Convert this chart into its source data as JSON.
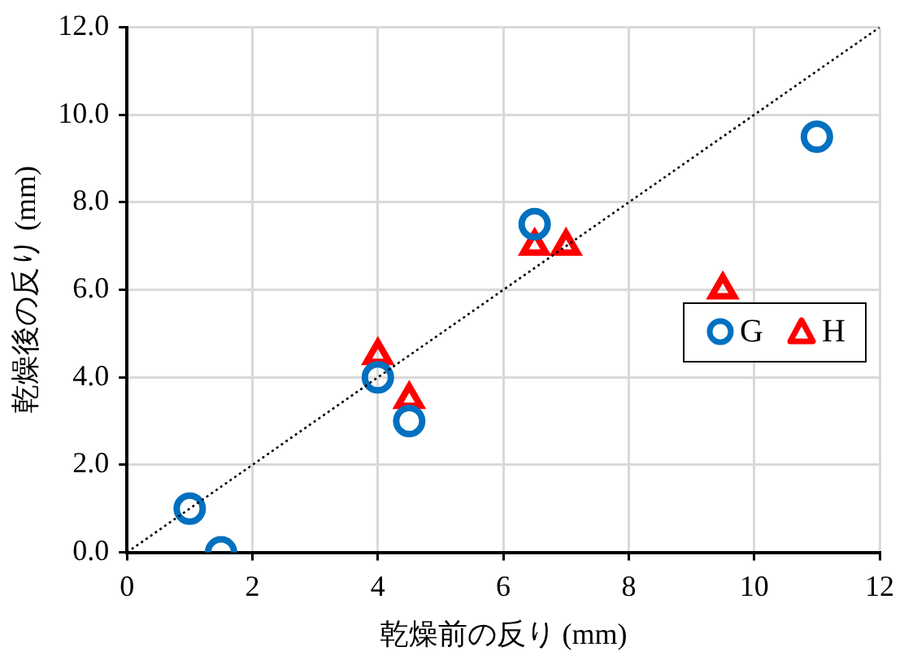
{
  "chart_data": {
    "type": "scatter",
    "xlabel": "乾燥前の反り (mm)",
    "ylabel": "乾燥後の反り (mm)",
    "xlim": [
      0,
      12
    ],
    "xticks": [
      0,
      2,
      4,
      6,
      8,
      10,
      12
    ],
    "ylim": [
      0,
      12
    ],
    "yticks": [
      {
        "value": 0,
        "label": "0.0"
      },
      {
        "value": 2,
        "label": "2.0"
      },
      {
        "value": 4,
        "label": "4.0"
      },
      {
        "value": 6,
        "label": "6.0"
      },
      {
        "value": 8,
        "label": "8.0"
      },
      {
        "value": 10,
        "label": "10.0"
      },
      {
        "value": 12,
        "label": "12.0"
      }
    ],
    "grid": true,
    "legend": "right",
    "series": [
      {
        "type": "line",
        "color": "#000000",
        "line_style": "dotted",
        "marker": "none",
        "x": [
          0,
          12
        ],
        "values": [
          0,
          12
        ]
      },
      {
        "name": "G",
        "color": "#0070c0",
        "marker": "circle",
        "x": [
          1,
          1.5,
          4,
          4.5,
          6.5,
          11
        ],
        "values": [
          1,
          0,
          4,
          3,
          7.5,
          9.5
        ]
      },
      {
        "name": "H",
        "color": "#ff0000",
        "marker": "triangle",
        "x": [
          4,
          4.5,
          6.5,
          7,
          9.5
        ],
        "values": [
          4.5,
          3.5,
          7,
          7,
          6
        ]
      }
    ]
  }
}
